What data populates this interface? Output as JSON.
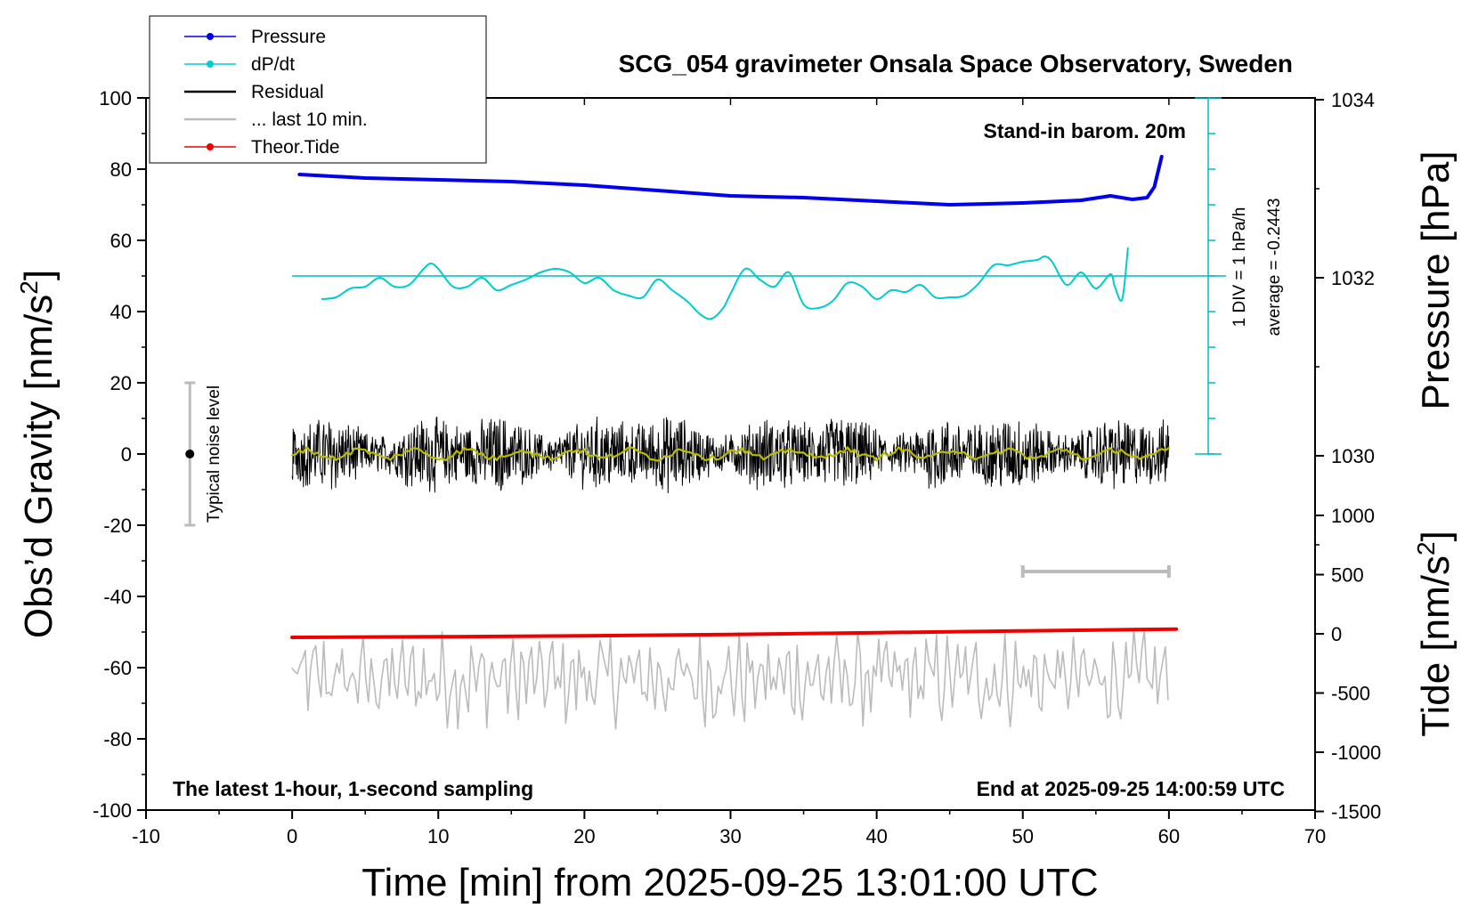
{
  "chart_data": {
    "type": "line",
    "title": "SCG_054 gravimeter Onsala Space Observatory, Sweden",
    "xlabel": "Time [min] from 2025-09-25 13:01:00 UTC",
    "ylabel_left": "Obs’d Gravity [nm/s",
    "ylabel_left_sup": "2",
    "ylabel_left_end": "]",
    "ylabel_right_top": "Pressure [hPa]",
    "ylabel_right_bottom": "Tide [nm/s",
    "ylabel_right_bottom_sup": "2",
    "ylabel_right_bottom_end": "]",
    "xlim": [
      -10,
      70
    ],
    "ylim": [
      -100,
      100
    ],
    "x_ticks": [
      "-10",
      "0",
      "10",
      "20",
      "30",
      "40",
      "50",
      "60",
      "70"
    ],
    "y_ticks": [
      "100",
      "80",
      "60",
      "40",
      "20",
      "0",
      "-20",
      "-40",
      "-60",
      "-80",
      "-100"
    ],
    "pressure_ticks": [
      "1034",
      "1032",
      "1030"
    ],
    "tide_ticks": [
      "1000",
      "500",
      "0",
      "-500",
      "-1000",
      "-1500"
    ],
    "grid": false,
    "legend_position": "top-left",
    "annotations": {
      "barometer": "Stand-in barom. 20m",
      "div": "1 DIV = 1 hPa/h",
      "average": "average = -0.2443",
      "noise": "Typical noise level",
      "latest": "The latest 1-hour, 1-second sampling",
      "end": "End at 2025-09-25 14:00:59 UTC"
    },
    "legend": [
      {
        "name": "Pressure",
        "color": "#0000ee",
        "marker": true
      },
      {
        "name": "dP/dt",
        "color": "#00cccc",
        "marker": true
      },
      {
        "name": "Residual",
        "color": "#000000",
        "marker": false
      },
      {
        "name": "... last 10 min.",
        "color": "#bbbbbb",
        "marker": false
      },
      {
        "name": "Theor.Tide",
        "color": "#ee0000",
        "marker": true
      }
    ],
    "series": [
      {
        "name": "Pressure",
        "axis": "pressure_hPa",
        "color": "#0000ee",
        "x": [
          0.5,
          5,
          10,
          15,
          20,
          25,
          30,
          35,
          40,
          45,
          50,
          54,
          56,
          57.5,
          58.5,
          59,
          59.5
        ],
        "values": [
          1033.16,
          1033.12,
          1033.1,
          1033.08,
          1033.04,
          1032.98,
          1032.92,
          1032.9,
          1032.86,
          1032.82,
          1032.84,
          1032.87,
          1032.92,
          1032.88,
          1032.9,
          1033.02,
          1033.36
        ]
      },
      {
        "name": "dP/dt",
        "axis": "gravity_nms2",
        "color": "#00cccc",
        "x": [
          2,
          3,
          4,
          5,
          6,
          7,
          8,
          9,
          9.5,
          10,
          11,
          12,
          13,
          14,
          15,
          16,
          17,
          18,
          19,
          20,
          21,
          22,
          23,
          24,
          25,
          26,
          27,
          28,
          28.7,
          29.5,
          30,
          31,
          32,
          33,
          34,
          35,
          36,
          37,
          38,
          39,
          40,
          41,
          42,
          43,
          44,
          45,
          46,
          47,
          48,
          49,
          50,
          51,
          51.5,
          52,
          53,
          54,
          55,
          56,
          56.3,
          56.8,
          57.2
        ],
        "values": [
          43.5,
          44,
          46.5,
          47,
          49.5,
          47,
          47.5,
          52,
          53.5,
          52,
          47,
          47,
          49.5,
          46,
          47.5,
          49,
          51,
          52,
          51,
          48,
          49.5,
          46,
          44.5,
          44,
          49,
          46,
          43,
          39,
          38,
          41,
          45,
          52,
          49,
          47,
          51,
          42,
          41,
          43,
          48,
          47,
          43.5,
          46,
          45.5,
          47.5,
          44,
          44,
          44.5,
          48,
          53,
          53,
          54,
          54.5,
          55.5,
          54,
          47.5,
          51,
          46.5,
          50.5,
          47,
          43.5,
          58
        ]
      },
      {
        "name": "Residual",
        "axis": "gravity_nms2",
        "color": "#000000",
        "x_range": [
          0,
          60
        ],
        "center": 0,
        "amplitude": 10,
        "smoothed_color": "#bbbb00"
      },
      {
        "name": "... last 10 min.",
        "axis": "gravity_nms2",
        "color": "#bbbbbb",
        "x_range": [
          0,
          60
        ],
        "center": -63,
        "amplitude": 9
      },
      {
        "name": "Theor.Tide",
        "axis": "tide_nms2",
        "color": "#ee0000",
        "x": [
          0,
          10,
          20,
          30,
          40,
          50,
          60.5
        ],
        "values": [
          -30,
          -25,
          -17,
          -5,
          10,
          25,
          40
        ]
      }
    ],
    "noise_bar": {
      "x": -7,
      "center": 0,
      "low": -20,
      "high": 20
    },
    "scale_bar": {
      "x_start": 50,
      "x_end": 60,
      "y": -33
    }
  }
}
